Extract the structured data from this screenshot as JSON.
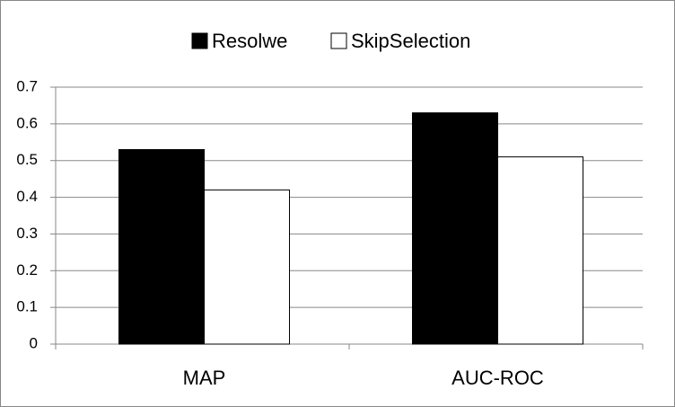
{
  "chart_data": {
    "type": "bar",
    "categories": [
      "MAP",
      "AUC-ROC"
    ],
    "series": [
      {
        "name": "Resolwe",
        "color": "#000000",
        "values": [
          0.53,
          0.63
        ]
      },
      {
        "name": "SkipSelection",
        "color": "#ffffff",
        "values": [
          0.42,
          0.51
        ]
      }
    ],
    "ylim": [
      0,
      0.7
    ],
    "yticks": [
      0,
      0.1,
      0.2,
      0.3,
      0.4,
      0.5,
      0.6,
      0.7
    ],
    "grid": true,
    "legend": "top"
  }
}
